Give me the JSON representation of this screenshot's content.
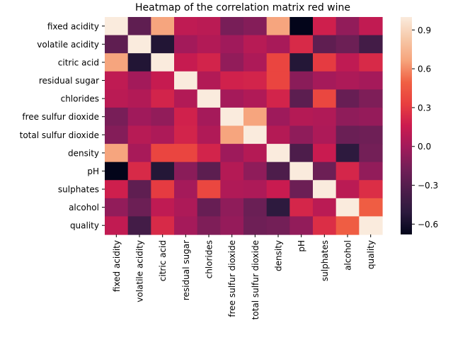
{
  "chart_data": {
    "type": "heatmap",
    "title": "Heatmap of the correlation matrix red wine",
    "xlabel": "",
    "ylabel": "",
    "x_categories": [
      "fixed acidity",
      "volatile acidity",
      "citric acid",
      "residual sugar",
      "chlorides",
      "free sulfur dioxide",
      "total sulfur dioxide",
      "density",
      "pH",
      "sulphates",
      "alcohol",
      "quality"
    ],
    "y_categories": [
      "fixed acidity",
      "volatile acidity",
      "citric acid",
      "residual sugar",
      "chlorides",
      "free sulfur dioxide",
      "total sulfur dioxide",
      "density",
      "pH",
      "sulphates",
      "alcohol",
      "quality"
    ],
    "values": [
      [
        1.0,
        -0.26,
        0.67,
        0.11,
        0.09,
        -0.15,
        -0.11,
        0.67,
        -0.68,
        0.18,
        -0.06,
        0.12
      ],
      [
        -0.26,
        1.0,
        -0.55,
        0.0,
        0.06,
        -0.01,
        0.08,
        0.02,
        0.23,
        -0.26,
        -0.2,
        -0.39
      ],
      [
        0.67,
        -0.55,
        1.0,
        0.14,
        0.2,
        -0.06,
        0.04,
        0.36,
        -0.54,
        0.31,
        0.11,
        0.23
      ],
      [
        0.11,
        0.0,
        0.14,
        1.0,
        0.06,
        0.19,
        0.2,
        0.36,
        -0.09,
        0.01,
        0.04,
        0.01
      ],
      [
        0.09,
        0.06,
        0.2,
        0.06,
        1.0,
        0.01,
        0.05,
        0.2,
        -0.27,
        0.37,
        -0.22,
        -0.13
      ],
      [
        -0.15,
        -0.01,
        -0.06,
        0.19,
        0.01,
        1.0,
        0.67,
        -0.02,
        0.07,
        0.05,
        -0.07,
        -0.05
      ],
      [
        -0.11,
        0.08,
        0.04,
        0.2,
        0.05,
        0.67,
        1.0,
        0.07,
        -0.07,
        0.04,
        -0.21,
        -0.19
      ],
      [
        0.67,
        0.02,
        0.36,
        0.36,
        0.2,
        -0.02,
        0.07,
        1.0,
        -0.34,
        0.15,
        -0.5,
        -0.17
      ],
      [
        -0.68,
        0.23,
        -0.54,
        -0.09,
        -0.27,
        0.07,
        -0.07,
        -0.34,
        1.0,
        -0.2,
        0.21,
        -0.06
      ],
      [
        0.18,
        -0.26,
        0.31,
        0.01,
        0.37,
        0.05,
        0.04,
        0.15,
        -0.2,
        1.0,
        0.09,
        0.25
      ],
      [
        -0.06,
        -0.2,
        0.11,
        0.04,
        -0.22,
        -0.07,
        -0.21,
        -0.5,
        0.21,
        0.09,
        1.0,
        0.48
      ],
      [
        0.12,
        -0.39,
        0.23,
        0.01,
        -0.13,
        -0.05,
        -0.19,
        -0.17,
        -0.06,
        0.25,
        0.48,
        1.0
      ]
    ],
    "vmin": -0.68,
    "vmax": 1.0,
    "colormap": "rocket",
    "colorbar_ticks": [
      0.9,
      0.6,
      0.3,
      0.0,
      -0.3,
      -0.6
    ],
    "colorbar_tick_labels": [
      "0.9",
      "0.6",
      "0.3",
      "0.0",
      "−0.3",
      "−0.6"
    ],
    "grid": false
  }
}
